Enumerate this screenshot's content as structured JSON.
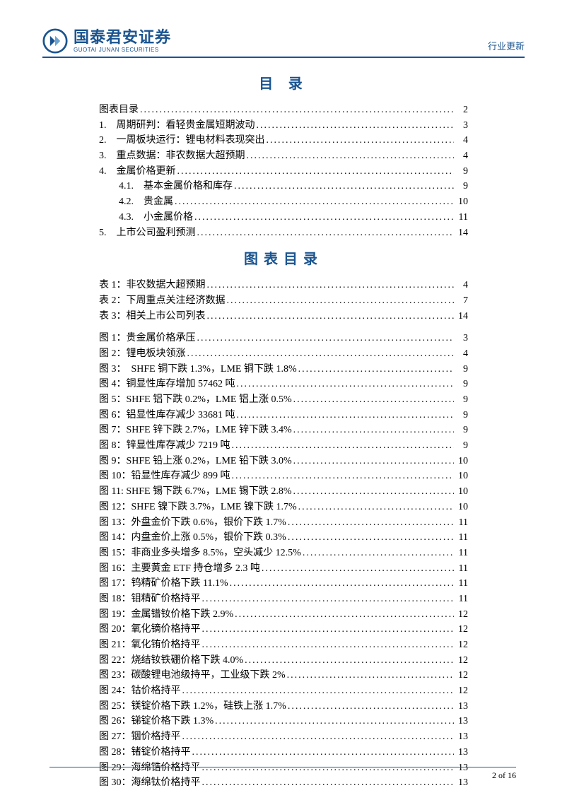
{
  "header": {
    "logo_cn": "国泰君安证券",
    "logo_en": "GUOTAI JUNAN SECURITIES",
    "right_text": "行业更新"
  },
  "toc_title": "目 录",
  "figtoc_title": "图表目录",
  "main_toc": [
    {
      "label": "图表目录",
      "page": "2",
      "indent": 0
    },
    {
      "label": "1.　周期研判：看轻贵金属短期波动",
      "page": "3",
      "indent": 0
    },
    {
      "label": "2.　一周板块运行：锂电材料表现突出",
      "page": "4",
      "indent": 0
    },
    {
      "label": "3.　重点数据：非农数据大超预期",
      "page": "4",
      "indent": 0
    },
    {
      "label": "4.　金属价格更新",
      "page": "9",
      "indent": 0
    },
    {
      "label": "4.1.　基本金属价格和库存",
      "page": "9",
      "indent": 1
    },
    {
      "label": "4.2.　贵金属",
      "page": "10",
      "indent": 1
    },
    {
      "label": "4.3.　小金属价格",
      "page": "11",
      "indent": 1
    },
    {
      "label": "5.　上市公司盈利预测",
      "page": "14",
      "indent": 0
    }
  ],
  "tables_toc": [
    {
      "label": "表 1：非农数据大超预期",
      "page": "4"
    },
    {
      "label": "表 2：下周重点关注经济数据",
      "page": "7"
    },
    {
      "label": "表 3：相关上市公司列表",
      "page": "14"
    }
  ],
  "figures_toc": [
    {
      "label": "图 1：贵金属价格承压",
      "page": "3"
    },
    {
      "label": "图 2：锂电板块领涨",
      "page": "4"
    },
    {
      "label": "图 3：　SHFE 铜下跌 1.3%，LME 铜下跌 1.8%",
      "page": "9"
    },
    {
      "label": "图 4：铜显性库存增加 57462 吨",
      "page": "9"
    },
    {
      "label": "图 5：SHFE 铝下跌 0.2%，LME 铝上涨 0.5%",
      "page": "9"
    },
    {
      "label": "图 6：铝显性库存减少 33681 吨",
      "page": "9"
    },
    {
      "label": "图 7：SHFE 锌下跌 2.7%，LME 锌下跌 3.4%",
      "page": "9"
    },
    {
      "label": "图 8：锌显性库存减少 7219 吨",
      "page": "9"
    },
    {
      "label": "图 9：SHFE 铅上涨 0.2%，LME 铅下跌 3.0%",
      "page": "10"
    },
    {
      "label": "图 10：铅显性库存减少 899 吨",
      "page": "10"
    },
    {
      "label": "图 11: SHFE 锡下跌 6.7%，LME 锡下跌 2.8%",
      "page": "10"
    },
    {
      "label": "图 12：SHFE 镍下跌 3.7%，LME 镍下跌 1.7%",
      "page": "10"
    },
    {
      "label": "图 13：外盘金价下跌 0.6%，银价下跌 1.7%",
      "page": "11"
    },
    {
      "label": "图 14：内盘金价上涨 0.5%，银价下跌 0.3%",
      "page": "11"
    },
    {
      "label": "图 15：非商业多头增多 8.5%，空头减少 12.5%",
      "page": "11"
    },
    {
      "label": "图 16：主要黄金 ETF 持仓增多 2.3 吨",
      "page": "11"
    },
    {
      "label": "图 17：钨精矿价格下跌 11.1%",
      "page": "11"
    },
    {
      "label": "图 18：钼精矿价格持平",
      "page": "11"
    },
    {
      "label": "图 19：金属镨钕价格下跌 2.9%",
      "page": "12"
    },
    {
      "label": "图 20：氧化镝价格持平",
      "page": "12"
    },
    {
      "label": "图 21：氧化铕价格持平",
      "page": "12"
    },
    {
      "label": "图 22：烧结钕铁硼价格下跌 4.0%",
      "page": "12"
    },
    {
      "label": "图 23：碳酸锂电池级持平，工业级下跌 2%",
      "page": "12"
    },
    {
      "label": "图 24：钴价格持平",
      "page": "12"
    },
    {
      "label": "图 25：镁锭价格下跌 1.2%，硅铁上涨 1.7%",
      "page": "13"
    },
    {
      "label": "图 26：锑锭价格下跌 1.3%",
      "page": "13"
    },
    {
      "label": "图 27：铟价格持平",
      "page": "13"
    },
    {
      "label": "图 28：锗锭价格持平",
      "page": "13"
    },
    {
      "label": "图 29：海绵锆价格持平",
      "page": "13"
    },
    {
      "label": "图 30：海绵钛价格持平",
      "page": "13"
    }
  ],
  "footer": "2 of 16",
  "colors": {
    "brand": "#1a5490",
    "text": "#000000",
    "bg": "#ffffff"
  }
}
